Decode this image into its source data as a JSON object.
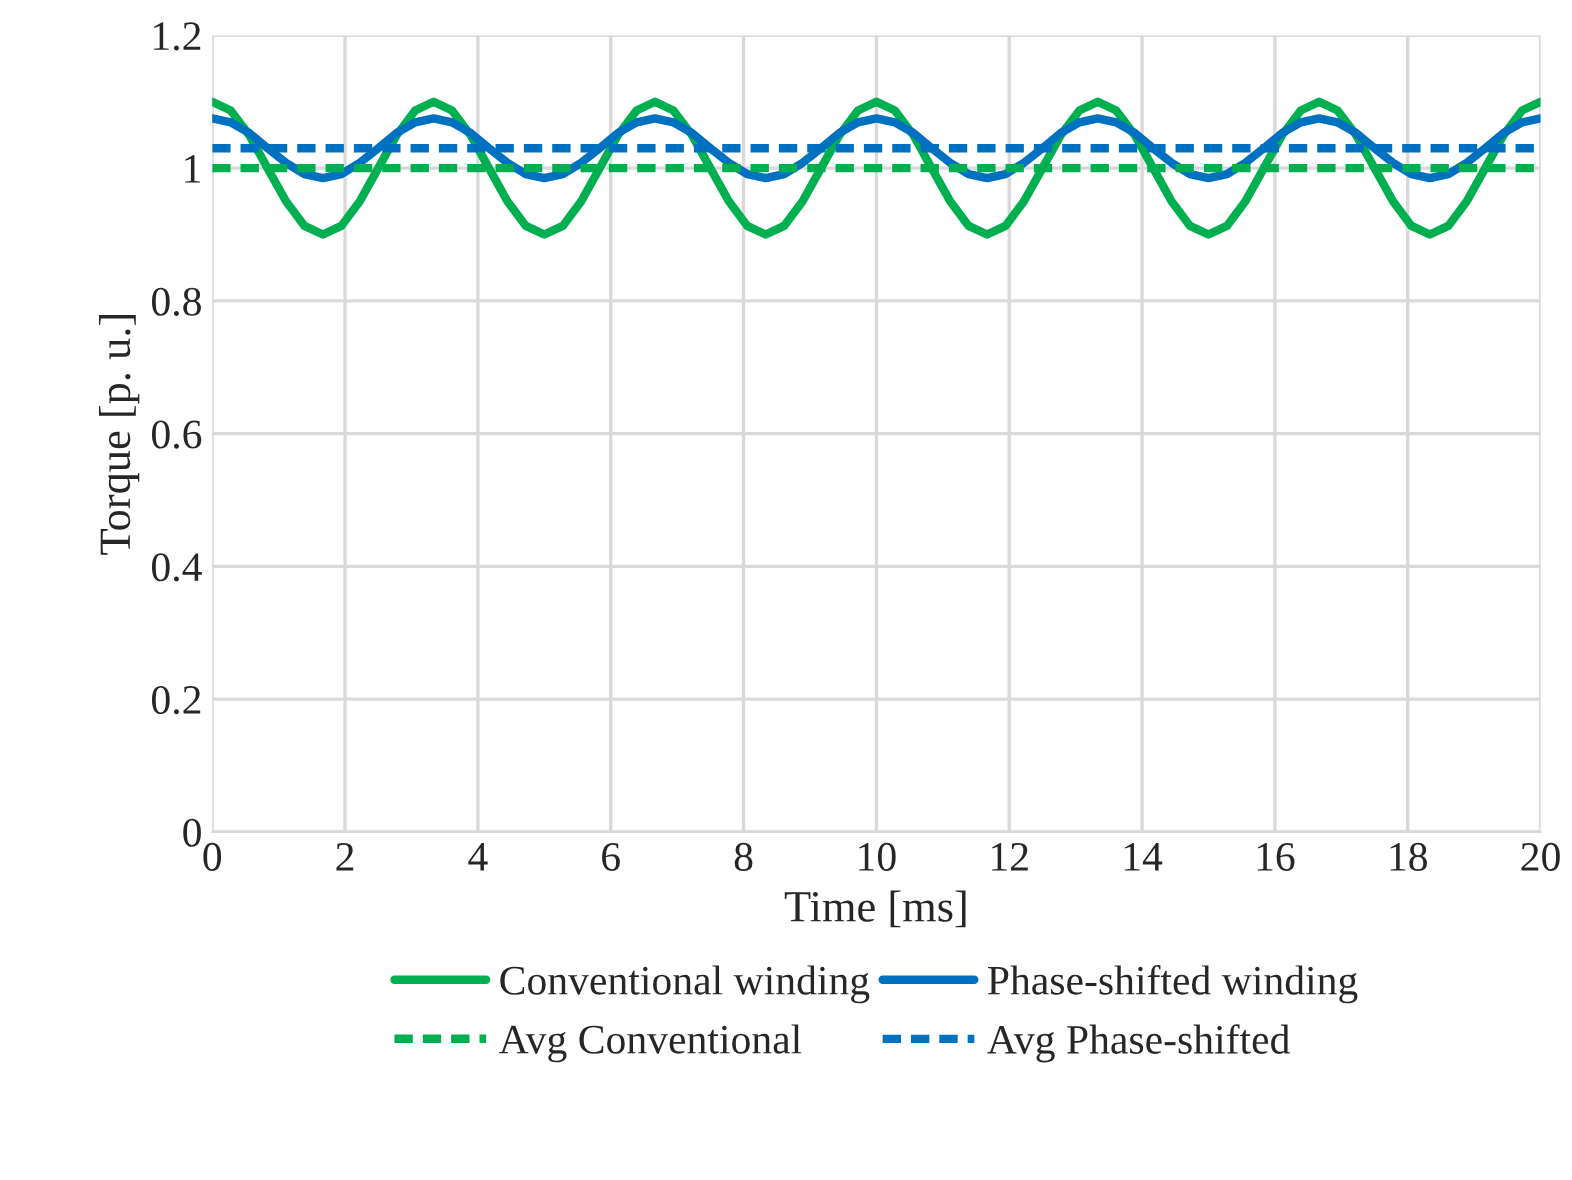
{
  "chart_data": {
    "type": "line",
    "xlabel": "Time [ms]",
    "ylabel": "Torque [p. u.]",
    "x": [
      0,
      0.278,
      0.556,
      0.833,
      1.111,
      1.389,
      1.667,
      1.944,
      2.222,
      2.5,
      2.778,
      3.056,
      3.333,
      3.611,
      3.889,
      4.167,
      4.444,
      4.722,
      5,
      5.278,
      5.556,
      5.833,
      6.111,
      6.389,
      6.667,
      6.944,
      7.222,
      7.5,
      7.778,
      8.056,
      8.333,
      8.611,
      8.889,
      9.167,
      9.444,
      9.722,
      10,
      10.278,
      10.556,
      10.833,
      11.111,
      11.389,
      11.667,
      11.944,
      12.222,
      12.5,
      12.778,
      13.056,
      13.333,
      13.611,
      13.889,
      14.167,
      14.444,
      14.722,
      15,
      15.278,
      15.556,
      15.833,
      16.111,
      16.389,
      16.667,
      16.944,
      17.222,
      17.5,
      17.778,
      18.056,
      18.333,
      18.611,
      18.889,
      19.167,
      19.444,
      19.722,
      20
    ],
    "series": [
      {
        "name": "Conventional winding",
        "color": "#00b050",
        "line_style": "solid",
        "values": [
          1.1,
          1.087,
          1.05,
          1.0,
          0.95,
          0.913,
          0.9,
          0.913,
          0.95,
          1.0,
          1.05,
          1.087,
          1.1,
          1.087,
          1.05,
          1.0,
          0.95,
          0.913,
          0.9,
          0.913,
          0.95,
          1.0,
          1.05,
          1.087,
          1.1,
          1.087,
          1.05,
          1.0,
          0.95,
          0.913,
          0.9,
          0.913,
          0.95,
          1.0,
          1.05,
          1.087,
          1.1,
          1.087,
          1.05,
          1.0,
          0.95,
          0.913,
          0.9,
          0.913,
          0.95,
          1.0,
          1.05,
          1.087,
          1.1,
          1.087,
          1.05,
          1.0,
          0.95,
          0.913,
          0.9,
          0.913,
          0.95,
          1.0,
          1.05,
          1.087,
          1.1,
          1.087,
          1.05,
          1.0,
          0.95,
          0.913,
          0.9,
          0.913,
          0.95,
          1.0,
          1.05,
          1.087,
          1.1
        ]
      },
      {
        "name": "Phase-shifted winding",
        "color": "#0070c0",
        "line_style": "solid",
        "values": [
          1.075,
          1.069,
          1.053,
          1.03,
          1.008,
          0.991,
          0.985,
          0.991,
          1.008,
          1.03,
          1.053,
          1.069,
          1.075,
          1.069,
          1.053,
          1.03,
          1.008,
          0.991,
          0.985,
          0.991,
          1.008,
          1.03,
          1.053,
          1.069,
          1.075,
          1.069,
          1.053,
          1.03,
          1.008,
          0.991,
          0.985,
          0.991,
          1.008,
          1.03,
          1.053,
          1.069,
          1.075,
          1.069,
          1.053,
          1.03,
          1.008,
          0.991,
          0.985,
          0.991,
          1.008,
          1.03,
          1.053,
          1.069,
          1.075,
          1.069,
          1.053,
          1.03,
          1.008,
          0.991,
          0.985,
          0.991,
          1.008,
          1.03,
          1.053,
          1.069,
          1.075,
          1.069,
          1.053,
          1.03,
          1.008,
          0.991,
          0.985,
          0.991,
          1.008,
          1.03,
          1.053,
          1.069,
          1.075
        ]
      },
      {
        "name": "Avg Conventional",
        "color": "#00b050",
        "line_style": "dashed",
        "values": [
          1,
          1,
          1,
          1,
          1,
          1,
          1,
          1,
          1,
          1,
          1,
          1,
          1,
          1,
          1,
          1,
          1,
          1,
          1,
          1,
          1,
          1,
          1,
          1,
          1,
          1,
          1,
          1,
          1,
          1,
          1,
          1,
          1,
          1,
          1,
          1,
          1,
          1,
          1,
          1,
          1,
          1,
          1,
          1,
          1,
          1,
          1,
          1,
          1,
          1,
          1,
          1,
          1,
          1,
          1,
          1,
          1,
          1,
          1,
          1,
          1,
          1,
          1,
          1,
          1,
          1,
          1,
          1,
          1,
          1,
          1,
          1,
          1
        ]
      },
      {
        "name": "Avg Phase-shifted",
        "color": "#0070c0",
        "line_style": "dashed",
        "values": [
          1.03,
          1.03,
          1.03,
          1.03,
          1.03,
          1.03,
          1.03,
          1.03,
          1.03,
          1.03,
          1.03,
          1.03,
          1.03,
          1.03,
          1.03,
          1.03,
          1.03,
          1.03,
          1.03,
          1.03,
          1.03,
          1.03,
          1.03,
          1.03,
          1.03,
          1.03,
          1.03,
          1.03,
          1.03,
          1.03,
          1.03,
          1.03,
          1.03,
          1.03,
          1.03,
          1.03,
          1.03,
          1.03,
          1.03,
          1.03,
          1.03,
          1.03,
          1.03,
          1.03,
          1.03,
          1.03,
          1.03,
          1.03,
          1.03,
          1.03,
          1.03,
          1.03,
          1.03,
          1.03,
          1.03,
          1.03,
          1.03,
          1.03,
          1.03,
          1.03,
          1.03,
          1.03,
          1.03,
          1.03,
          1.03,
          1.03,
          1.03,
          1.03,
          1.03,
          1.03,
          1.03,
          1.03,
          1.03
        ]
      }
    ],
    "xlim": [
      0,
      20
    ],
    "xticks": [
      0,
      2,
      4,
      6,
      8,
      10,
      12,
      14,
      16,
      18,
      20
    ],
    "ylim": [
      0,
      1.2
    ],
    "yticks": [
      {
        "value": 0,
        "label": "0"
      },
      {
        "value": 0.2,
        "label": "0.2"
      },
      {
        "value": 0.4,
        "label": "0.4"
      },
      {
        "value": 0.6,
        "label": "0.6"
      },
      {
        "value": 0.8,
        "label": "0.8"
      },
      {
        "value": 1,
        "label": "1"
      },
      {
        "value": 1.2,
        "label": "1.2"
      }
    ],
    "grid": true,
    "legend": "bottom",
    "marker": "none"
  }
}
